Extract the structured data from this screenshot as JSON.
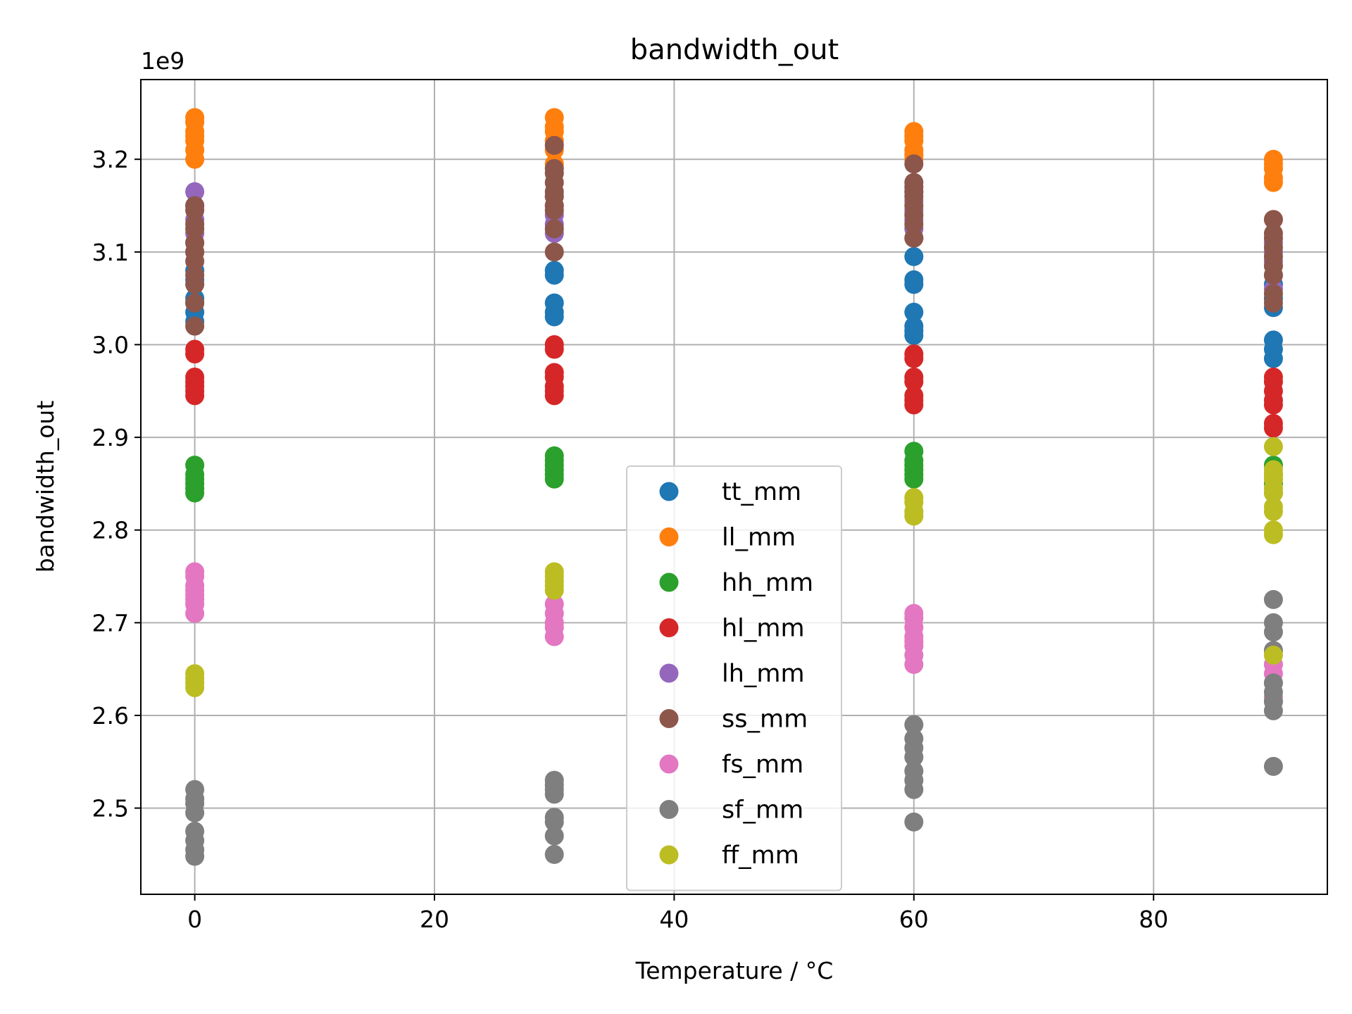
{
  "chart_data": {
    "type": "scatter",
    "title": "bandwidth_out",
    "xlabel": "Temperature / °C",
    "ylabel": "bandwidth_out",
    "y_offset_label": "1e9",
    "xlim": [
      -4.5,
      94.5
    ],
    "ylim": [
      2.407,
      3.286
    ],
    "xticks": [
      0,
      20,
      40,
      60,
      80
    ],
    "yticks": [
      2.5,
      2.6,
      2.7,
      2.8,
      2.9,
      3.0,
      3.1,
      3.2
    ],
    "grid": true,
    "legend_position": "lower-center",
    "series": [
      {
        "name": "tt_mm",
        "color": "#1f77b4",
        "points": [
          [
            0,
            3.025
          ],
          [
            0,
            3.035
          ],
          [
            0,
            3.045
          ],
          [
            0,
            3.05
          ],
          [
            0,
            3.07
          ],
          [
            0,
            3.08
          ],
          [
            30,
            3.03
          ],
          [
            30,
            3.035
          ],
          [
            30,
            3.045
          ],
          [
            30,
            3.075
          ],
          [
            30,
            3.08
          ],
          [
            60,
            3.01
          ],
          [
            60,
            3.015
          ],
          [
            60,
            3.02
          ],
          [
            60,
            3.035
          ],
          [
            60,
            3.065
          ],
          [
            60,
            3.07
          ],
          [
            60,
            3.095
          ],
          [
            90,
            2.985
          ],
          [
            90,
            2.995
          ],
          [
            90,
            3.005
          ],
          [
            90,
            3.04
          ],
          [
            90,
            3.05
          ],
          [
            90,
            3.065
          ]
        ]
      },
      {
        "name": "ll_mm",
        "color": "#ff7f0e",
        "points": [
          [
            0,
            3.2
          ],
          [
            0,
            3.21
          ],
          [
            0,
            3.22
          ],
          [
            0,
            3.225
          ],
          [
            0,
            3.23
          ],
          [
            0,
            3.24
          ],
          [
            0,
            3.245
          ],
          [
            30,
            3.195
          ],
          [
            30,
            3.21
          ],
          [
            30,
            3.22
          ],
          [
            30,
            3.23
          ],
          [
            30,
            3.235
          ],
          [
            30,
            3.245
          ],
          [
            60,
            3.2
          ],
          [
            60,
            3.205
          ],
          [
            60,
            3.21
          ],
          [
            60,
            3.22
          ],
          [
            60,
            3.225
          ],
          [
            60,
            3.23
          ],
          [
            90,
            3.135
          ],
          [
            90,
            3.175
          ],
          [
            90,
            3.18
          ],
          [
            90,
            3.19
          ],
          [
            90,
            3.195
          ],
          [
            90,
            3.2
          ]
        ]
      },
      {
        "name": "hh_mm",
        "color": "#2ca02c",
        "points": [
          [
            0,
            2.84
          ],
          [
            0,
            2.845
          ],
          [
            0,
            2.85
          ],
          [
            0,
            2.855
          ],
          [
            0,
            2.86
          ],
          [
            0,
            2.87
          ],
          [
            30,
            2.855
          ],
          [
            30,
            2.86
          ],
          [
            30,
            2.865
          ],
          [
            30,
            2.87
          ],
          [
            30,
            2.875
          ],
          [
            30,
            2.88
          ],
          [
            60,
            2.855
          ],
          [
            60,
            2.86
          ],
          [
            60,
            2.865
          ],
          [
            60,
            2.87
          ],
          [
            60,
            2.875
          ],
          [
            60,
            2.885
          ],
          [
            90,
            2.84
          ],
          [
            90,
            2.85
          ],
          [
            90,
            2.855
          ],
          [
            90,
            2.86
          ],
          [
            90,
            2.87
          ]
        ]
      },
      {
        "name": "hl_mm",
        "color": "#d62728",
        "points": [
          [
            0,
            2.945
          ],
          [
            0,
            2.95
          ],
          [
            0,
            2.955
          ],
          [
            0,
            2.96
          ],
          [
            0,
            2.965
          ],
          [
            0,
            2.99
          ],
          [
            0,
            2.995
          ],
          [
            30,
            2.945
          ],
          [
            30,
            2.95
          ],
          [
            30,
            2.955
          ],
          [
            30,
            2.965
          ],
          [
            30,
            2.97
          ],
          [
            30,
            2.995
          ],
          [
            30,
            3.0
          ],
          [
            60,
            2.935
          ],
          [
            60,
            2.94
          ],
          [
            60,
            2.945
          ],
          [
            60,
            2.96
          ],
          [
            60,
            2.965
          ],
          [
            60,
            2.985
          ],
          [
            60,
            2.99
          ],
          [
            90,
            2.91
          ],
          [
            90,
            2.915
          ],
          [
            90,
            2.935
          ],
          [
            90,
            2.94
          ],
          [
            90,
            2.95
          ],
          [
            90,
            2.96
          ],
          [
            90,
            2.965
          ]
        ]
      },
      {
        "name": "lh_mm",
        "color": "#9467bd",
        "points": [
          [
            0,
            3.1
          ],
          [
            0,
            3.11
          ],
          [
            0,
            3.12
          ],
          [
            0,
            3.135
          ],
          [
            0,
            3.15
          ],
          [
            0,
            3.165
          ],
          [
            30,
            3.12
          ],
          [
            30,
            3.13
          ],
          [
            30,
            3.14
          ],
          [
            30,
            3.15
          ],
          [
            30,
            3.16
          ],
          [
            60,
            3.115
          ],
          [
            60,
            3.125
          ],
          [
            60,
            3.135
          ],
          [
            60,
            3.145
          ],
          [
            60,
            3.155
          ],
          [
            60,
            3.165
          ],
          [
            90,
            3.06
          ],
          [
            90,
            3.075
          ],
          [
            90,
            3.09
          ],
          [
            90,
            3.1
          ],
          [
            90,
            3.11
          ]
        ]
      },
      {
        "name": "ss_mm",
        "color": "#8c564b",
        "points": [
          [
            0,
            3.02
          ],
          [
            0,
            3.045
          ],
          [
            0,
            3.065
          ],
          [
            0,
            3.075
          ],
          [
            0,
            3.09
          ],
          [
            0,
            3.1
          ],
          [
            0,
            3.11
          ],
          [
            0,
            3.125
          ],
          [
            0,
            3.13
          ],
          [
            0,
            3.145
          ],
          [
            0,
            3.15
          ],
          [
            30,
            3.1
          ],
          [
            30,
            3.125
          ],
          [
            30,
            3.145
          ],
          [
            30,
            3.15
          ],
          [
            30,
            3.16
          ],
          [
            30,
            3.165
          ],
          [
            30,
            3.175
          ],
          [
            30,
            3.185
          ],
          [
            30,
            3.19
          ],
          [
            30,
            3.215
          ],
          [
            60,
            3.115
          ],
          [
            60,
            3.13
          ],
          [
            60,
            3.14
          ],
          [
            60,
            3.15
          ],
          [
            60,
            3.16
          ],
          [
            60,
            3.165
          ],
          [
            60,
            3.17
          ],
          [
            60,
            3.175
          ],
          [
            60,
            3.195
          ],
          [
            90,
            3.045
          ],
          [
            90,
            3.055
          ],
          [
            90,
            3.075
          ],
          [
            90,
            3.085
          ],
          [
            90,
            3.095
          ],
          [
            90,
            3.105
          ],
          [
            90,
            3.115
          ],
          [
            90,
            3.12
          ],
          [
            90,
            3.135
          ]
        ]
      },
      {
        "name": "fs_mm",
        "color": "#e377c2",
        "points": [
          [
            0,
            2.71
          ],
          [
            0,
            2.72
          ],
          [
            0,
            2.725
          ],
          [
            0,
            2.73
          ],
          [
            0,
            2.735
          ],
          [
            0,
            2.74
          ],
          [
            0,
            2.75
          ],
          [
            0,
            2.755
          ],
          [
            30,
            2.685
          ],
          [
            30,
            2.695
          ],
          [
            30,
            2.7
          ],
          [
            30,
            2.71
          ],
          [
            30,
            2.72
          ],
          [
            60,
            2.655
          ],
          [
            60,
            2.665
          ],
          [
            60,
            2.675
          ],
          [
            60,
            2.68
          ],
          [
            60,
            2.685
          ],
          [
            60,
            2.695
          ],
          [
            60,
            2.705
          ],
          [
            60,
            2.71
          ],
          [
            90,
            2.615
          ],
          [
            90,
            2.62
          ],
          [
            90,
            2.635
          ],
          [
            90,
            2.645
          ],
          [
            90,
            2.655
          ],
          [
            90,
            2.67
          ]
        ]
      },
      {
        "name": "sf_mm",
        "color": "#7f7f7f",
        "points": [
          [
            0,
            2.448
          ],
          [
            0,
            2.455
          ],
          [
            0,
            2.465
          ],
          [
            0,
            2.475
          ],
          [
            0,
            2.495
          ],
          [
            0,
            2.505
          ],
          [
            0,
            2.51
          ],
          [
            0,
            2.52
          ],
          [
            30,
            2.45
          ],
          [
            30,
            2.47
          ],
          [
            30,
            2.485
          ],
          [
            30,
            2.49
          ],
          [
            30,
            2.515
          ],
          [
            30,
            2.52
          ],
          [
            30,
            2.525
          ],
          [
            30,
            2.53
          ],
          [
            60,
            2.485
          ],
          [
            60,
            2.52
          ],
          [
            60,
            2.53
          ],
          [
            60,
            2.54
          ],
          [
            60,
            2.555
          ],
          [
            60,
            2.565
          ],
          [
            60,
            2.575
          ],
          [
            60,
            2.59
          ],
          [
            90,
            2.545
          ],
          [
            90,
            2.605
          ],
          [
            90,
            2.615
          ],
          [
            90,
            2.625
          ],
          [
            90,
            2.635
          ],
          [
            90,
            2.67
          ],
          [
            90,
            2.69
          ],
          [
            90,
            2.7
          ],
          [
            90,
            2.725
          ]
        ]
      },
      {
        "name": "ff_mm",
        "color": "#bcbd22",
        "points": [
          [
            0,
            2.63
          ],
          [
            0,
            2.635
          ],
          [
            0,
            2.64
          ],
          [
            0,
            2.645
          ],
          [
            30,
            2.735
          ],
          [
            30,
            2.74
          ],
          [
            30,
            2.745
          ],
          [
            30,
            2.75
          ],
          [
            30,
            2.755
          ],
          [
            60,
            2.815
          ],
          [
            60,
            2.82
          ],
          [
            60,
            2.83
          ],
          [
            60,
            2.835
          ],
          [
            90,
            2.665
          ],
          [
            90,
            2.795
          ],
          [
            90,
            2.8
          ],
          [
            90,
            2.82
          ],
          [
            90,
            2.825
          ],
          [
            90,
            2.84
          ],
          [
            90,
            2.845
          ],
          [
            90,
            2.855
          ],
          [
            90,
            2.86
          ],
          [
            90,
            2.865
          ],
          [
            90,
            2.89
          ]
        ]
      }
    ]
  }
}
